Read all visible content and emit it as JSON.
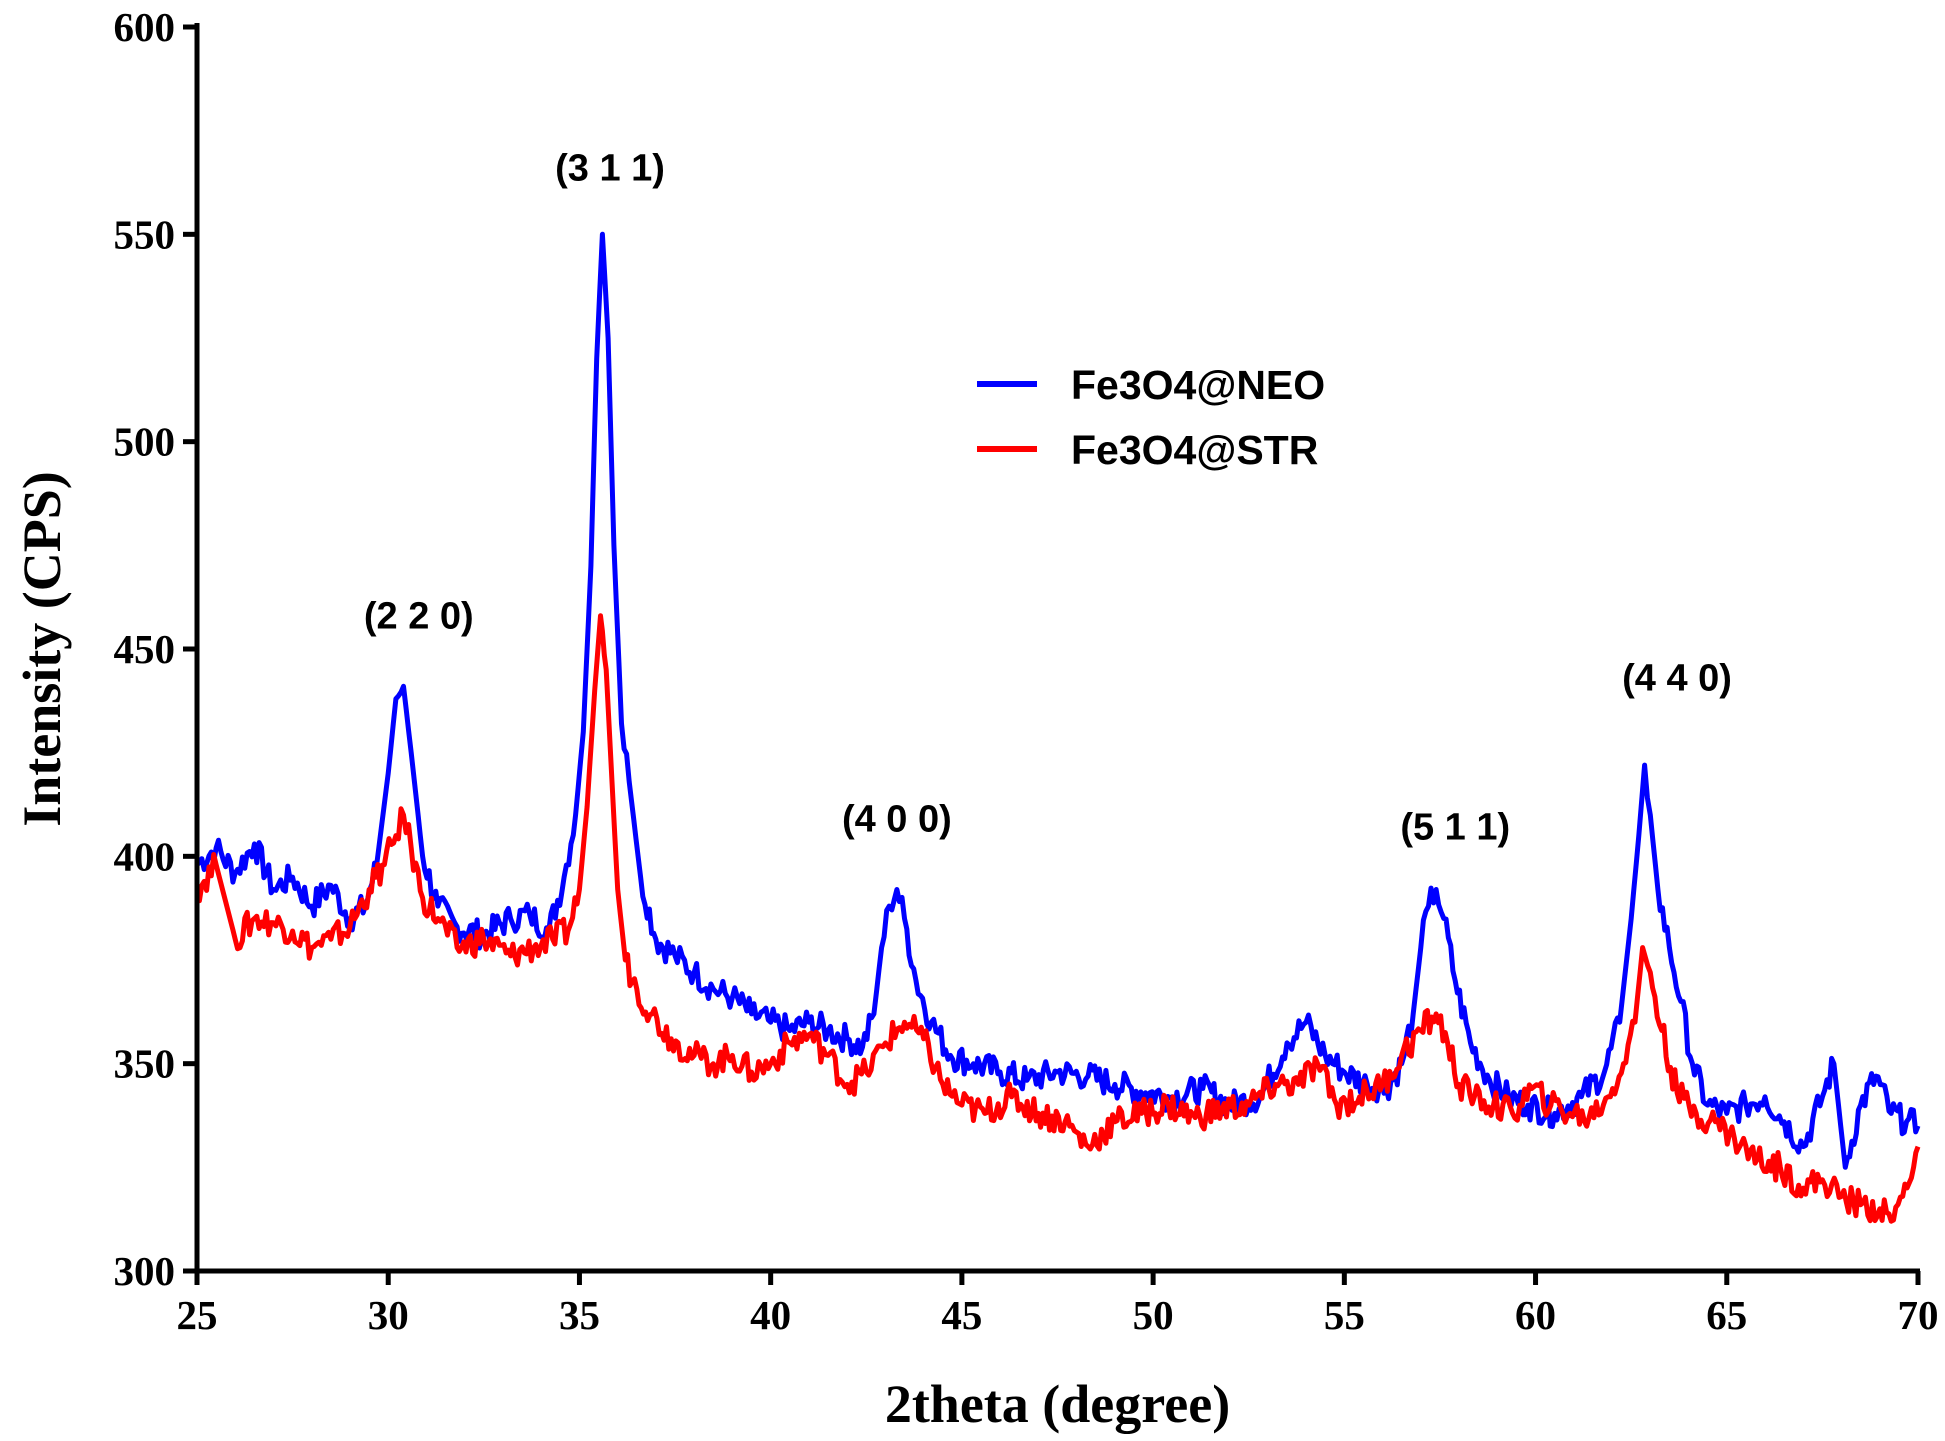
{
  "chart_data": {
    "type": "line",
    "xlabel": "2theta (degree)",
    "ylabel": "Intensity (CPS)",
    "xlim": [
      25,
      70
    ],
    "ylim": [
      300,
      600
    ],
    "xticks": [
      "25",
      "30",
      "35",
      "40",
      "45",
      "50",
      "55",
      "60",
      "65",
      "70"
    ],
    "yticks": [
      "300",
      "350",
      "400",
      "450",
      "500",
      "550",
      "600"
    ],
    "grid": false,
    "legend_position": "center-right",
    "annotations": [
      {
        "text": "(2 2 0)",
        "x": 30.8,
        "y": 455
      },
      {
        "text": "(3 1 1)",
        "x": 35.8,
        "y": 563
      },
      {
        "text": "(4 0 0)",
        "x": 43.3,
        "y": 406
      },
      {
        "text": "(5 1 1)",
        "x": 57.9,
        "y": 404
      },
      {
        "text": "(4 4 0)",
        "x": 63.7,
        "y": 440
      }
    ],
    "series": [
      {
        "name": "Fe3O4@NEO",
        "color": "#0000ff",
        "x": [
          25,
          25.5,
          26,
          26.5,
          27,
          27.5,
          28,
          28.5,
          29,
          29.4,
          29.7,
          30.0,
          30.2,
          30.4,
          30.6,
          30.9,
          31.3,
          31.8,
          32.5,
          33.2,
          33.7,
          34.2,
          34.6,
          34.9,
          35.1,
          35.3,
          35.45,
          35.6,
          35.75,
          35.9,
          36.1,
          36.3,
          36.6,
          37.0,
          37.5,
          38.0,
          38.5,
          39.0,
          39.5,
          40.0,
          40.5,
          41.0,
          41.5,
          42.0,
          42.4,
          42.7,
          42.9,
          43.1,
          43.3,
          43.5,
          43.8,
          44.2,
          44.7,
          45.3,
          46.0,
          46.7,
          47.5,
          48.3,
          49.0,
          49.8,
          50.5,
          51.3,
          52.0,
          52.8,
          53.5,
          54.0,
          54.5,
          55.0,
          55.6,
          56.1,
          56.5,
          56.8,
          57.0,
          57.2,
          57.4,
          57.6,
          57.9,
          58.3,
          58.8,
          59.3,
          59.8,
          60.5,
          61.2,
          61.8,
          62.2,
          62.5,
          62.7,
          62.85,
          63.0,
          63.2,
          63.5,
          63.8,
          64.1,
          64.5,
          65.0,
          65.5,
          66.0,
          66.5,
          67.0,
          67.5,
          67.8,
          68.1,
          68.5,
          68.9,
          69.3,
          69.7,
          70.0
        ],
        "y": [
          398,
          402,
          396,
          403,
          392,
          395,
          388,
          393,
          385,
          388,
          398,
          420,
          438,
          441,
          425,
          400,
          388,
          383,
          381,
          385,
          386,
          382,
          395,
          410,
          430,
          470,
          520,
          550,
          525,
          475,
          432,
          418,
          395,
          380,
          376,
          372,
          368,
          366,
          362,
          360,
          358,
          360,
          358,
          356,
          354,
          362,
          378,
          388,
          392,
          385,
          370,
          360,
          352,
          350,
          348,
          346,
          348,
          347,
          345,
          343,
          342,
          344,
          340,
          342,
          355,
          360,
          352,
          348,
          345,
          344,
          350,
          362,
          378,
          388,
          392,
          385,
          370,
          355,
          346,
          342,
          340,
          338,
          342,
          348,
          360,
          385,
          405,
          422,
          410,
          392,
          378,
          365,
          350,
          340,
          338,
          340,
          342,
          336,
          330,
          342,
          350,
          325,
          340,
          347,
          338,
          336,
          335
        ]
      },
      {
        "name": "Fe3O4@STR",
        "color": "#ff0000",
        "x": [
          25,
          25.5,
          26,
          26.5,
          27,
          27.5,
          28,
          28.5,
          29,
          29.5,
          29.9,
          30.2,
          30.4,
          30.6,
          30.9,
          31.3,
          31.8,
          32.5,
          33.2,
          33.8,
          34.3,
          34.7,
          35.0,
          35.2,
          35.4,
          35.55,
          35.7,
          35.85,
          36.0,
          36.2,
          36.5,
          36.9,
          37.4,
          38.0,
          38.5,
          39.0,
          39.5,
          40.0,
          40.5,
          41.0,
          41.5,
          42.0,
          42.5,
          43.0,
          43.5,
          44.0,
          44.5,
          45.0,
          45.6,
          46.3,
          47.0,
          47.7,
          48.3,
          49.0,
          49.7,
          50.4,
          51.1,
          51.8,
          52.5,
          53.2,
          53.8,
          54.3,
          54.8,
          55.4,
          56.0,
          56.5,
          57.0,
          57.4,
          57.7,
          58.0,
          58.4,
          58.9,
          59.4,
          59.9,
          60.4,
          60.9,
          61.4,
          61.9,
          62.3,
          62.6,
          62.8,
          63.0,
          63.3,
          63.7,
          64.2,
          64.7,
          65.2,
          65.8,
          66.4,
          67.0,
          67.5,
          68.0,
          68.5,
          69.0,
          69.3,
          69.6,
          70.0
        ],
        "y": [
          392,
          398,
          380,
          385,
          384,
          382,
          378,
          380,
          383,
          392,
          398,
          405,
          410,
          402,
          390,
          385,
          378,
          380,
          376,
          378,
          380,
          382,
          392,
          412,
          440,
          458,
          445,
          418,
          392,
          375,
          368,
          362,
          356,
          352,
          350,
          352,
          348,
          350,
          355,
          357,
          352,
          345,
          348,
          355,
          360,
          356,
          345,
          340,
          338,
          342,
          338,
          336,
          330,
          336,
          338,
          340,
          337,
          339,
          340,
          345,
          345,
          350,
          340,
          342,
          345,
          352,
          358,
          362,
          355,
          345,
          342,
          340,
          338,
          344,
          340,
          338,
          337,
          342,
          350,
          360,
          378,
          372,
          358,
          343,
          338,
          336,
          332,
          327,
          325,
          320,
          322,
          318,
          316,
          315,
          312,
          318,
          330
        ]
      }
    ]
  }
}
